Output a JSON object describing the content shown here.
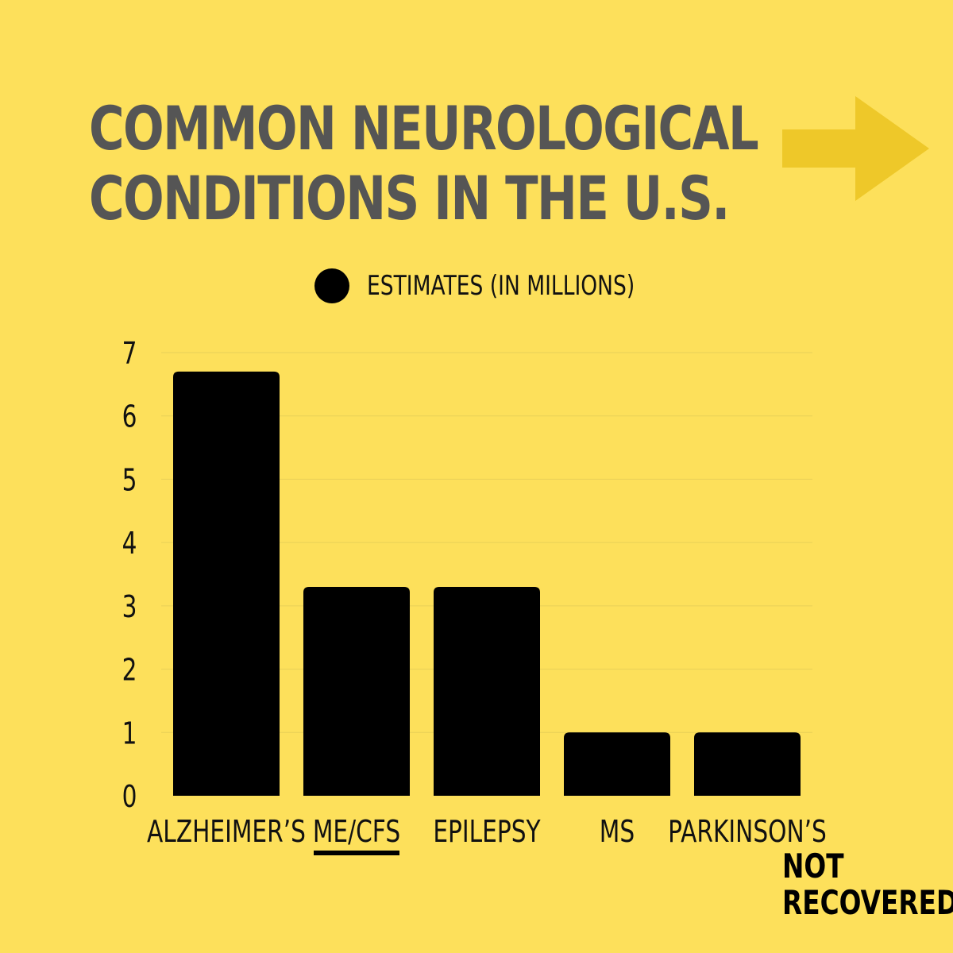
{
  "title": {
    "line1": "COMMON NEUROLOGICAL",
    "line2": "CONDITIONS IN THE U.S."
  },
  "legend": {
    "label": "ESTIMATES (IN MILLIONS)"
  },
  "brand": {
    "line1": "NOT",
    "line2": "RECOVERED"
  },
  "colors": {
    "background": "#fde05b",
    "title": "#555555",
    "bars": "#000000",
    "arrow": "#eec829"
  },
  "icons": {
    "next": "right-arrow-icon"
  },
  "chart_data": {
    "type": "bar",
    "categories": [
      "ALZHEIMER’S",
      "ME/CFS",
      "EPILEPSY",
      "MS",
      "PARKINSON’S"
    ],
    "series": [
      {
        "name": "ESTIMATES (IN MILLIONS)",
        "values": [
          6.7,
          3.3,
          3.3,
          1,
          1
        ]
      }
    ],
    "highlighted_category": "ME/CFS",
    "ylim": [
      0,
      7
    ],
    "yticks": [
      0,
      1,
      2,
      3,
      4,
      5,
      6,
      7
    ],
    "grid": true,
    "legend_position": "top"
  }
}
